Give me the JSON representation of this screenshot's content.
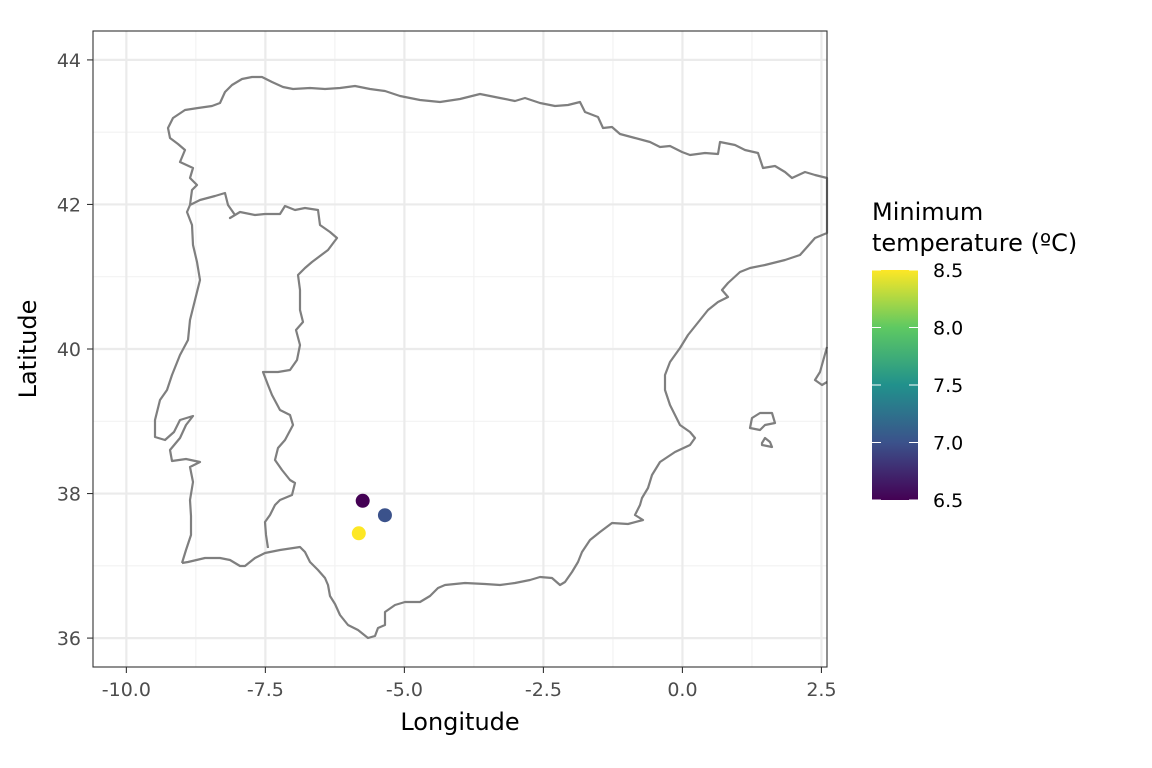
{
  "chart_data": {
    "type": "scatter",
    "title": "",
    "xlabel": "Longitude",
    "ylabel": "Latitude",
    "xlim": [
      -10.6,
      2.6
    ],
    "ylim": [
      35.6,
      44.4
    ],
    "x_major_ticks": [
      -10.0,
      -7.5,
      -5.0,
      -2.5,
      0.0,
      2.5
    ],
    "x_tick_labels": [
      "-10.0",
      "-7.5",
      "-5.0",
      "-2.5",
      "0.0",
      "2.5"
    ],
    "y_major_ticks": [
      36,
      38,
      40,
      42,
      44
    ],
    "y_tick_labels": [
      "36",
      "38",
      "40",
      "42",
      "44"
    ],
    "x_minor_ticks": [
      -8.75,
      -6.25,
      -3.75,
      -1.25,
      1.25
    ],
    "y_minor_ticks": [
      37,
      39,
      41,
      43
    ],
    "grid": true,
    "basemap": "Iberian Peninsula and Balearic Islands outline",
    "points": [
      {
        "lon": -5.75,
        "lat": 37.9,
        "value": 6.5
      },
      {
        "lon": -5.35,
        "lat": 37.7,
        "value": 7.0
      },
      {
        "lon": -5.82,
        "lat": 37.45,
        "value": 8.5
      }
    ],
    "color_scale": {
      "type": "viridis",
      "stops": [
        "#440154",
        "#3b528b",
        "#21918c",
        "#5ec962",
        "#fde725"
      ],
      "min": 6.5,
      "max": 8.5,
      "title_lines": [
        "Minimum",
        "temperature (ºC)"
      ],
      "ticks": [
        6.5,
        7.0,
        7.5,
        8.0,
        8.5
      ],
      "tick_labels": [
        "6.5",
        "7.0",
        "7.5",
        "8.0",
        "8.5"
      ]
    }
  },
  "colors": {
    "panel_border": "#333333",
    "grid_major": "#ebebeb",
    "grid_minor": "#f2f2f2",
    "coastline": "#7f7f7f"
  }
}
